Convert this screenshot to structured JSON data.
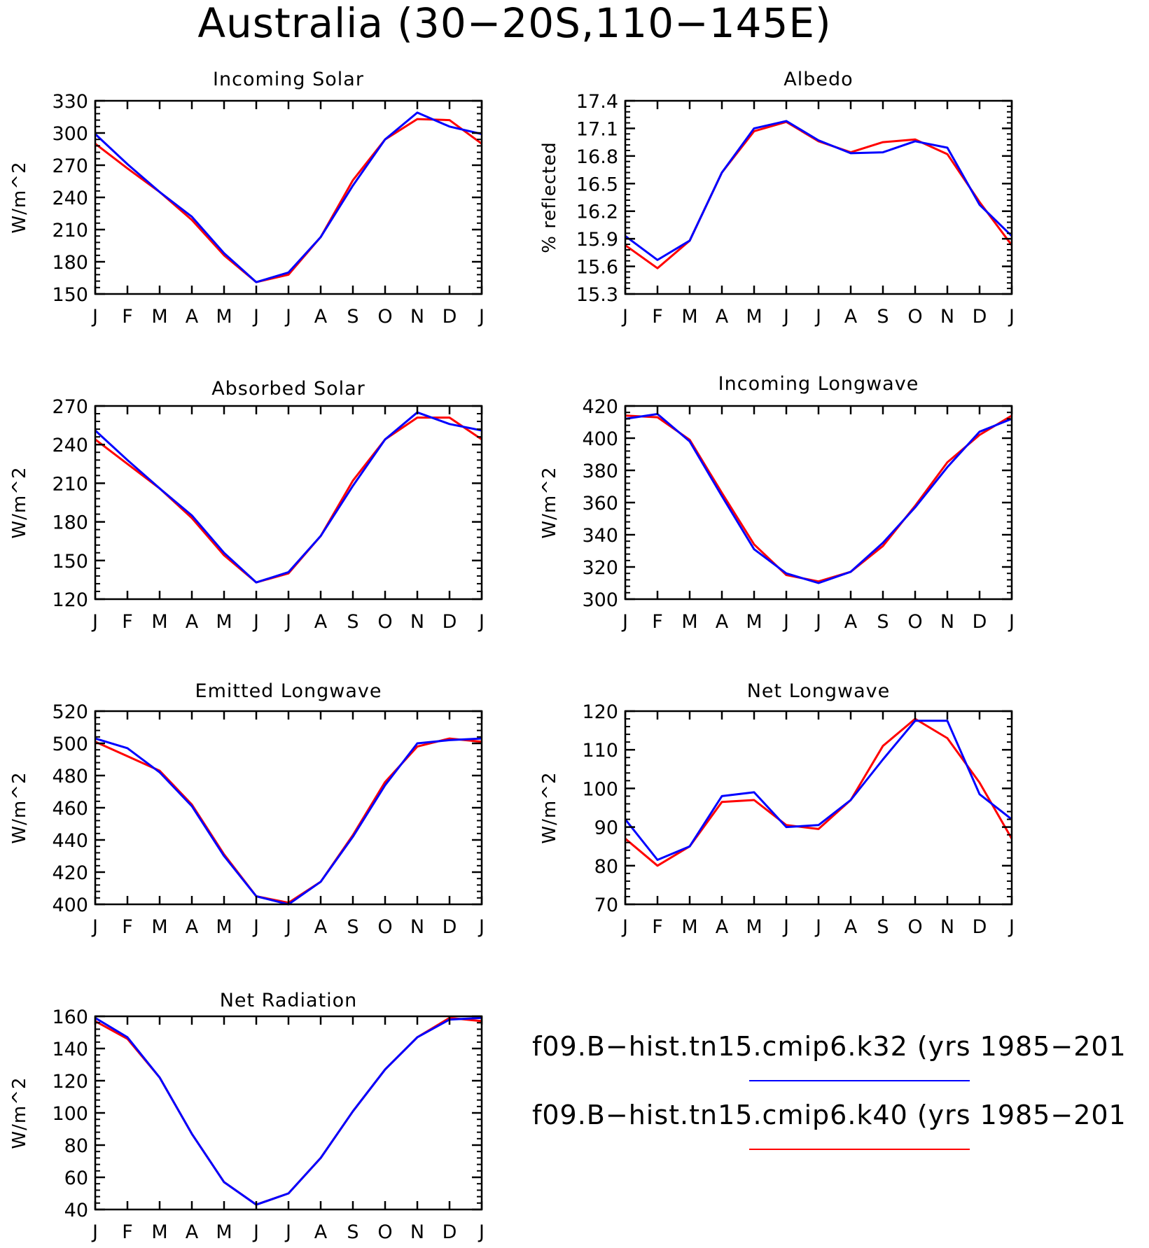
{
  "figure_title": "Australia (30−20S,110−145E)",
  "colors": {
    "k32": "#0000ff",
    "k40": "#ff0000",
    "axis": "#000000"
  },
  "legend": {
    "entries": [
      {
        "label": "f09.B−hist.tn15.cmip6.k32 (yrs 1985−201",
        "color": "#0000ff"
      },
      {
        "label": "f09.B−hist.tn15.cmip6.k40 (yrs 1985−201",
        "color": "#ff0000"
      }
    ]
  },
  "chart_data": [
    {
      "type": "line",
      "title": "Incoming Solar",
      "ylabel": "W/m^2",
      "categories": [
        "J",
        "F",
        "M",
        "A",
        "M",
        "J",
        "J",
        "A",
        "S",
        "O",
        "N",
        "D",
        "J"
      ],
      "ylim": [
        150,
        330
      ],
      "yticks": [
        "150",
        "180",
        "210",
        "240",
        "270",
        "300",
        "330"
      ],
      "series": [
        {
          "name": "f09.B−hist.tn15.cmip6.k40 (yrs 1985−201",
          "color": "#ff0000",
          "values": [
            290,
            267,
            245,
            219,
            186,
            161,
            168,
            203,
            256,
            294,
            313,
            312,
            290
          ]
        },
        {
          "name": "f09.B−hist.tn15.cmip6.k32 (yrs 1985−201",
          "color": "#0000ff",
          "values": [
            299,
            271,
            245,
            222,
            188,
            161,
            170,
            203,
            251,
            294,
            319,
            306,
            299
          ]
        }
      ]
    },
    {
      "type": "line",
      "title": "Albedo",
      "ylabel": "% reflected",
      "categories": [
        "J",
        "F",
        "M",
        "A",
        "M",
        "J",
        "J",
        "A",
        "S",
        "O",
        "N",
        "D",
        "J"
      ],
      "ylim": [
        15.3,
        17.4
      ],
      "yticks": [
        "15.3",
        "15.6",
        "15.9",
        "16.2",
        "16.5",
        "16.8",
        "17.1",
        "17.4"
      ],
      "series": [
        {
          "name": "f09.B−hist.tn15.cmip6.k40 (yrs 1985−201",
          "color": "#ff0000",
          "values": [
            15.83,
            15.58,
            15.88,
            16.62,
            17.07,
            17.17,
            16.96,
            16.84,
            16.95,
            16.98,
            16.82,
            16.3,
            15.83
          ]
        },
        {
          "name": "f09.B−hist.tn15.cmip6.k32 (yrs 1985−201",
          "color": "#0000ff",
          "values": [
            15.93,
            15.67,
            15.88,
            16.62,
            17.1,
            17.18,
            16.97,
            16.83,
            16.84,
            16.96,
            16.89,
            16.27,
            15.93
          ]
        }
      ]
    },
    {
      "type": "line",
      "title": "Absorbed Solar",
      "ylabel": "W/m^2",
      "categories": [
        "J",
        "F",
        "M",
        "A",
        "M",
        "J",
        "J",
        "A",
        "S",
        "O",
        "N",
        "D",
        "J"
      ],
      "ylim": [
        120,
        270
      ],
      "yticks": [
        "120",
        "150",
        "180",
        "210",
        "240",
        "270"
      ],
      "series": [
        {
          "name": "f09.B−hist.tn15.cmip6.k40 (yrs 1985−201",
          "color": "#ff0000",
          "values": [
            244,
            225,
            206,
            183,
            154,
            133,
            140,
            169,
            212,
            244,
            261,
            261,
            244
          ]
        },
        {
          "name": "f09.B−hist.tn15.cmip6.k32 (yrs 1985−201",
          "color": "#0000ff",
          "values": [
            251,
            228,
            206,
            185,
            156,
            133,
            141,
            169,
            208,
            244,
            265,
            256,
            251
          ]
        }
      ]
    },
    {
      "type": "line",
      "title": "Incoming Longwave",
      "ylabel": "W/m^2",
      "categories": [
        "J",
        "F",
        "M",
        "A",
        "M",
        "J",
        "J",
        "A",
        "S",
        "O",
        "N",
        "D",
        "J"
      ],
      "ylim": [
        300,
        420
      ],
      "yticks": [
        "300",
        "320",
        "340",
        "360",
        "380",
        "400",
        "420"
      ],
      "series": [
        {
          "name": "f09.B−hist.tn15.cmip6.k40 (yrs 1985−201",
          "color": "#ff0000",
          "values": [
            414,
            413,
            399,
            366,
            334,
            315,
            311,
            317,
            333,
            358,
            385,
            402,
            414
          ]
        },
        {
          "name": "f09.B−hist.tn15.cmip6.k32 (yrs 1985−201",
          "color": "#0000ff",
          "values": [
            412,
            415,
            398,
            364,
            331,
            316,
            310,
            317,
            335,
            357,
            382,
            404,
            412
          ]
        }
      ]
    },
    {
      "type": "line",
      "title": "Emitted Longwave",
      "ylabel": "W/m^2",
      "categories": [
        "J",
        "F",
        "M",
        "A",
        "M",
        "J",
        "J",
        "A",
        "S",
        "O",
        "N",
        "D",
        "J"
      ],
      "ylim": [
        400,
        520
      ],
      "yticks": [
        "400",
        "420",
        "440",
        "460",
        "480",
        "500",
        "520"
      ],
      "series": [
        {
          "name": "f09.B−hist.tn15.cmip6.k40 (yrs 1985−201",
          "color": "#ff0000",
          "values": [
            501,
            492,
            483,
            462,
            431,
            405,
            401,
            414,
            443,
            476,
            498,
            503,
            501
          ]
        },
        {
          "name": "f09.B−hist.tn15.cmip6.k32 (yrs 1985−201",
          "color": "#0000ff",
          "values": [
            503,
            497,
            482,
            461,
            430,
            405,
            400,
            414,
            442,
            474,
            500,
            502,
            503
          ]
        }
      ]
    },
    {
      "type": "line",
      "title": "Net Longwave",
      "ylabel": "W/m^2",
      "categories": [
        "J",
        "F",
        "M",
        "A",
        "M",
        "J",
        "J",
        "A",
        "S",
        "O",
        "N",
        "D",
        "J"
      ],
      "ylim": [
        70,
        120
      ],
      "yticks": [
        "70",
        "80",
        "90",
        "100",
        "110",
        "120"
      ],
      "series": [
        {
          "name": "f09.B−hist.tn15.cmip6.k40 (yrs 1985−201",
          "color": "#ff0000",
          "values": [
            87,
            80,
            85,
            96.5,
            97,
            90.5,
            89.5,
            97,
            111,
            118,
            113,
            101.5,
            87
          ]
        },
        {
          "name": "f09.B−hist.tn15.cmip6.k32 (yrs 1985−201",
          "color": "#0000ff",
          "values": [
            92,
            81.5,
            85,
            98,
            99,
            90,
            90.5,
            97,
            107.5,
            117.5,
            117.5,
            98.5,
            92
          ]
        }
      ]
    },
    {
      "type": "line",
      "title": "Net Radiation",
      "ylabel": "W/m^2",
      "categories": [
        "J",
        "F",
        "M",
        "A",
        "M",
        "J",
        "J",
        "A",
        "S",
        "O",
        "N",
        "D",
        "J"
      ],
      "ylim": [
        40,
        160
      ],
      "yticks": [
        "40",
        "60",
        "80",
        "100",
        "120",
        "140",
        "160"
      ],
      "series": [
        {
          "name": "f09.B−hist.tn15.cmip6.k40 (yrs 1985−201",
          "color": "#ff0000",
          "values": [
            157,
            146,
            122,
            87,
            57,
            43,
            50,
            72,
            101,
            127,
            147,
            159,
            157
          ]
        },
        {
          "name": "f09.B−hist.tn15.cmip6.k32 (yrs 1985−201",
          "color": "#0000ff",
          "values": [
            159,
            147,
            122,
            87,
            57,
            43,
            50,
            72,
            101,
            127,
            147,
            158,
            159
          ]
        }
      ]
    }
  ]
}
